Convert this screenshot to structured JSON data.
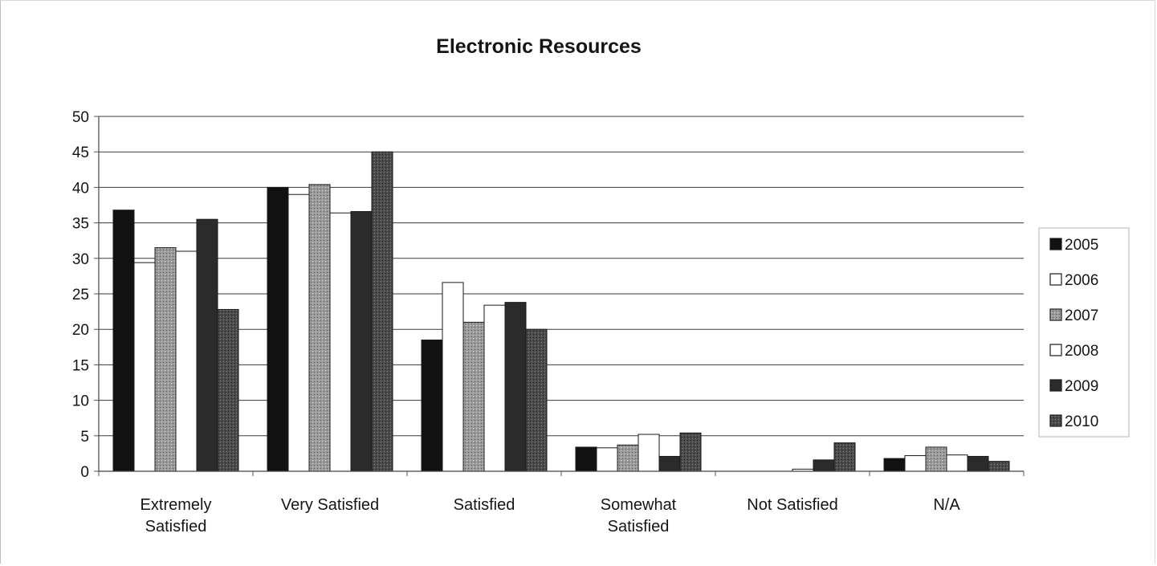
{
  "chart_data": {
    "type": "bar",
    "title": "Electronic Resources",
    "xlabel": "",
    "ylabel": "",
    "ylim": [
      0,
      50
    ],
    "yticks": [
      0,
      5,
      10,
      15,
      20,
      25,
      30,
      35,
      40,
      45,
      50
    ],
    "grid": true,
    "legend_position": "right",
    "categories": [
      [
        "Extremely",
        "Satisfied"
      ],
      [
        "Very Satisfied"
      ],
      [
        "Satisfied"
      ],
      [
        "Somewhat",
        "Satisfied"
      ],
      [
        "Not Satisfied"
      ],
      [
        "N/A"
      ]
    ],
    "series": [
      {
        "name": "2005",
        "color": "#111111",
        "values": [
          36.8,
          40.0,
          18.5,
          3.4,
          0,
          1.8
        ]
      },
      {
        "name": "2006",
        "color": "#ffffff",
        "values": [
          29.4,
          39.0,
          26.6,
          3.3,
          0,
          2.2
        ]
      },
      {
        "name": "2007",
        "color": "#8e8e8e",
        "values": [
          31.5,
          40.4,
          21.0,
          3.7,
          0,
          3.4
        ]
      },
      {
        "name": "2008",
        "color": "#ffffff",
        "values": [
          31.0,
          36.4,
          23.4,
          5.2,
          0.3,
          2.3
        ]
      },
      {
        "name": "2009",
        "color": "#2b2b2b",
        "values": [
          35.5,
          36.6,
          23.8,
          2.1,
          1.6,
          2.1
        ]
      },
      {
        "name": "2010",
        "color": "#555555",
        "values": [
          22.8,
          45.0,
          20.0,
          5.4,
          4.0,
          1.4
        ]
      }
    ]
  }
}
